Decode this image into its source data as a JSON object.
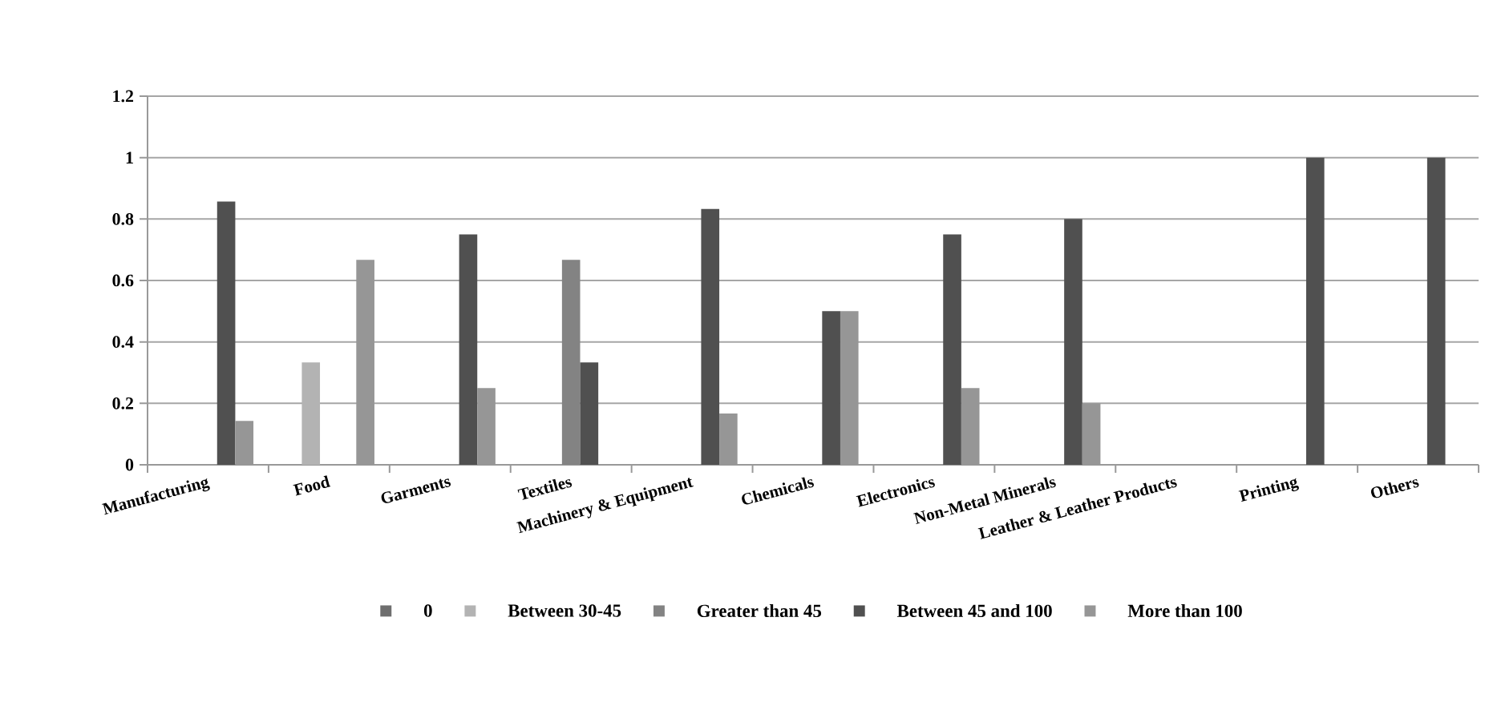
{
  "chart_data": {
    "type": "bar",
    "categories": [
      "Manufacturing",
      "Food",
      "Garments",
      "Textiles",
      "Machinery & Equipment",
      "Chemicals",
      "Electronics",
      "Non-Metal Minerals",
      "Leather & Leather Products",
      "Printing",
      "Others"
    ],
    "series": [
      {
        "name": "0",
        "color": "#6e6e6e",
        "values": [
          0,
          0,
          0,
          0,
          0,
          0,
          0,
          0,
          0,
          0,
          0
        ]
      },
      {
        "name": "Between 30-45",
        "color": "#b3b3b3",
        "values": [
          0,
          0.333,
          0,
          0,
          0,
          0,
          0,
          0,
          0,
          0,
          0
        ]
      },
      {
        "name": "Greater than 45",
        "color": "#838383",
        "values": [
          0,
          0,
          0,
          0.667,
          0,
          0,
          0,
          0,
          0,
          0,
          0
        ]
      },
      {
        "name": "Between 45 and 100",
        "color": "#505050",
        "values": [
          0.857,
          0,
          0.75,
          0.333,
          0.833,
          0.5,
          0.75,
          0.8,
          0,
          1,
          1
        ]
      },
      {
        "name": "More than 100",
        "color": "#969696",
        "values": [
          0.143,
          0.667,
          0.25,
          0,
          0.167,
          0.5,
          0.25,
          0.2,
          0,
          0,
          0
        ]
      }
    ],
    "ylim": [
      0,
      1.2
    ],
    "yticks": [
      0,
      0.2,
      0.4,
      0.6,
      0.8,
      1,
      1.2
    ],
    "grid": "y",
    "legend": "bottom"
  }
}
